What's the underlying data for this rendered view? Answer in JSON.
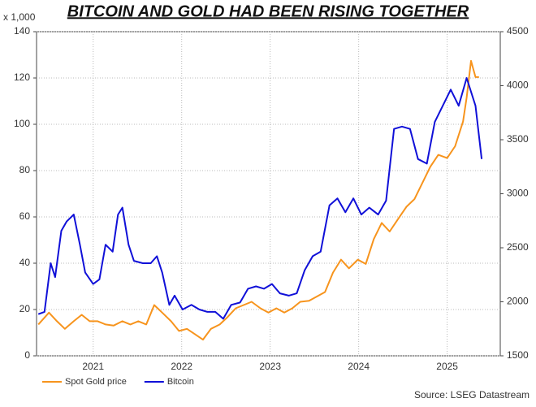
{
  "chart_data": {
    "type": "line",
    "title": "BITCOIN AND GOLD HAD BEEN RISING TOGETHER",
    "ylabel": "x 1,000",
    "source": "Source: LSEG Datastream",
    "grid": true,
    "legend": "bottom-left",
    "xlim": [
      2020.86,
      2026.1
    ],
    "xticks": [
      {
        "value": 2021.5,
        "label": "2021"
      },
      {
        "value": 2022.5,
        "label": "2022"
      },
      {
        "value": 2023.5,
        "label": "2023"
      },
      {
        "value": 2024.5,
        "label": "2024"
      },
      {
        "value": 2025.5,
        "label": "2025"
      }
    ],
    "ylim": [
      0,
      140
    ],
    "yticks": [
      0,
      20,
      40,
      60,
      80,
      100,
      120,
      140
    ],
    "y2lim": [
      1500,
      4500
    ],
    "y2ticks": [
      1500,
      2000,
      2500,
      3000,
      3500,
      4000,
      4500
    ],
    "series": [
      {
        "name": "Spot Gold price",
        "color": "#f7941d",
        "axis": "y2",
        "x": [
          2020.88,
          2021.0,
          2021.09,
          2021.18,
          2021.28,
          2021.37,
          2021.46,
          2021.55,
          2021.64,
          2021.73,
          2021.83,
          2021.92,
          2022.01,
          2022.1,
          2022.19,
          2022.28,
          2022.38,
          2022.47,
          2022.56,
          2022.65,
          2022.74,
          2022.83,
          2022.93,
          2023.02,
          2023.11,
          2023.2,
          2023.29,
          2023.39,
          2023.48,
          2023.57,
          2023.66,
          2023.75,
          2023.84,
          2023.94,
          2024.03,
          2024.12,
          2024.21,
          2024.3,
          2024.39,
          2024.49,
          2024.58,
          2024.67,
          2024.76,
          2024.85,
          2024.94,
          2025.04,
          2025.13,
          2025.22,
          2025.31,
          2025.4,
          2025.5,
          2025.59,
          2025.68,
          2025.72,
          2025.77,
          2025.82,
          2025.86
        ],
        "values": [
          1790,
          1900,
          1820,
          1750,
          1820,
          1880,
          1820,
          1820,
          1790,
          1780,
          1820,
          1790,
          1820,
          1790,
          1970,
          1900,
          1820,
          1730,
          1750,
          1700,
          1650,
          1750,
          1790,
          1860,
          1940,
          1970,
          2000,
          1940,
          1900,
          1940,
          1900,
          1940,
          2000,
          2010,
          2050,
          2090,
          2270,
          2390,
          2310,
          2390,
          2350,
          2580,
          2730,
          2650,
          2760,
          2880,
          2950,
          3100,
          3250,
          3360,
          3330,
          3440,
          3670,
          3890,
          4230,
          4080,
          4080
        ]
      },
      {
        "name": "Bitcoin",
        "color": "#1010d8",
        "x": [
          2020.88,
          2020.95,
          2021.02,
          2021.07,
          2021.14,
          2021.2,
          2021.28,
          2021.35,
          2021.41,
          2021.5,
          2021.57,
          2021.64,
          2021.72,
          2021.78,
          2021.83,
          2021.9,
          2021.96,
          2022.06,
          2022.15,
          2022.22,
          2022.28,
          2022.36,
          2022.42,
          2022.51,
          2022.61,
          2022.7,
          2022.79,
          2022.88,
          2022.97,
          2023.06,
          2023.16,
          2023.25,
          2023.34,
          2023.43,
          2023.52,
          2023.61,
          2023.71,
          2023.8,
          2023.89,
          2023.98,
          2024.07,
          2024.17,
          2024.26,
          2024.35,
          2024.44,
          2024.53,
          2024.62,
          2024.72,
          2024.81,
          2024.9,
          2024.99,
          2025.08,
          2025.17,
          2025.27,
          2025.36,
          2025.45,
          2025.54,
          2025.63,
          2025.72,
          2025.82,
          2025.89
        ],
        "values": [
          18,
          19,
          40,
          34,
          54,
          58,
          61,
          48,
          36,
          31,
          33,
          48,
          45,
          61,
          64,
          48,
          41,
          40,
          40,
          43,
          36,
          22,
          26,
          20,
          22,
          20,
          19,
          19,
          16,
          22,
          23,
          29,
          30,
          29,
          31,
          27,
          26,
          27,
          37,
          43,
          45,
          65,
          68,
          62,
          68,
          61,
          64,
          61,
          67,
          98,
          99,
          98,
          85,
          83,
          101,
          108,
          115,
          108,
          120,
          108,
          85
        ]
      }
    ]
  }
}
